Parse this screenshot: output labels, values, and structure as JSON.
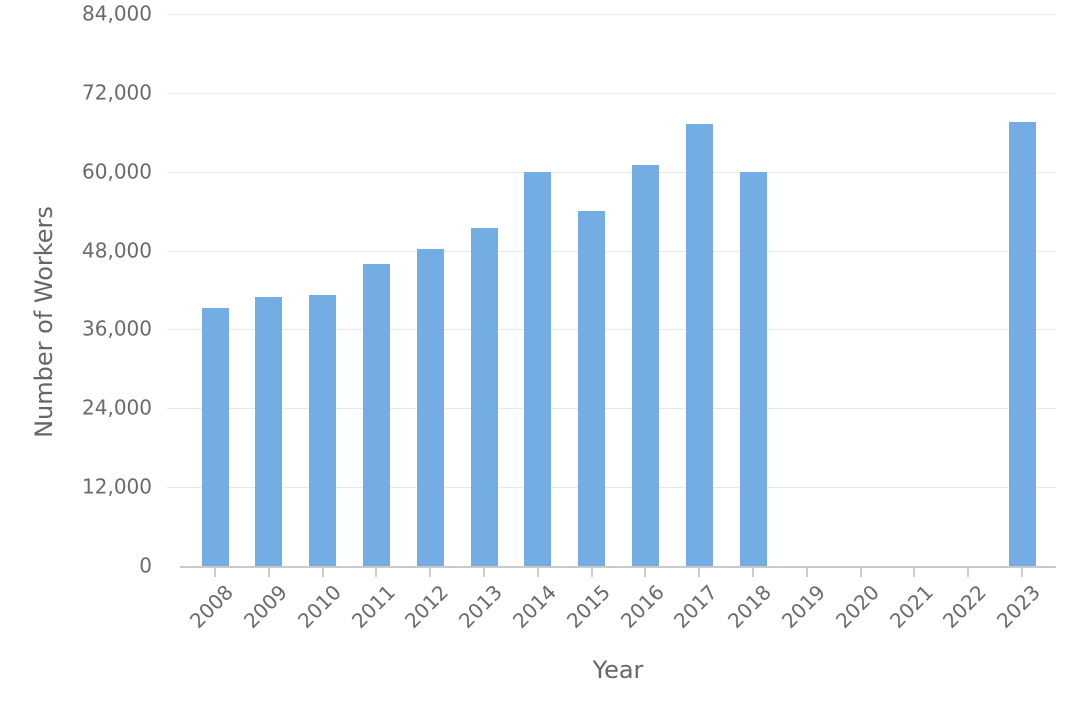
{
  "figure": {
    "background_color": "#ffffff",
    "text_color": "#666666",
    "gridline_color": "#e8e8e8",
    "axis_line_color": "#c9c9c9",
    "tick_mark_color": "#cccccc",
    "bar_color": "#74ACE4"
  },
  "chart_data": {
    "type": "bar",
    "title": "",
    "xlabel": "Year",
    "ylabel": "Number of Workers",
    "categories": [
      "2008",
      "2009",
      "2010",
      "2011",
      "2012",
      "2013",
      "2014",
      "2015",
      "2016",
      "2017",
      "2018",
      "2019",
      "2020",
      "2021",
      "2022",
      "2023"
    ],
    "values": [
      39300,
      41000,
      41300,
      46000,
      48200,
      51400,
      60000,
      54100,
      61000,
      67200,
      60000,
      0,
      0,
      0,
      0,
      67500
    ],
    "ylim": [
      0,
      84000
    ],
    "ytick_step": 12000,
    "ytick_labels": [
      "0",
      "12,000",
      "24,000",
      "36,000",
      "48,000",
      "60,000",
      "72,000",
      "84,000"
    ],
    "grid": true,
    "legend": "none",
    "bar_color": "#74ACE4"
  }
}
